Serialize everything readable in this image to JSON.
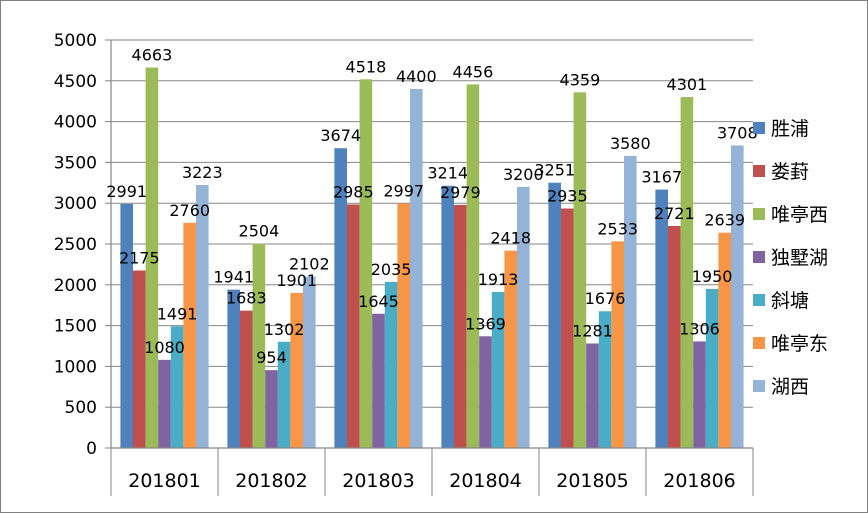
{
  "chart_data": {
    "type": "bar",
    "title": "",
    "xlabel": "",
    "ylabel": "",
    "ylim": [
      0,
      5000
    ],
    "y_ticks": [
      0,
      500,
      1000,
      1500,
      2000,
      2500,
      3000,
      3500,
      4000,
      4500,
      5000
    ],
    "grid": true,
    "legend_position": "right",
    "categories": [
      "201801",
      "201802",
      "201803",
      "201804",
      "201805",
      "201806"
    ],
    "series": [
      {
        "name": "胜浦",
        "color": "#4f81bd",
        "values": [
          2991,
          1941,
          3674,
          3214,
          3251,
          3167
        ]
      },
      {
        "name": "娄葑",
        "color": "#c0504d",
        "values": [
          2175,
          1683,
          2985,
          2979,
          2935,
          2721
        ]
      },
      {
        "name": "唯亭西",
        "color": "#9bbb59",
        "values": [
          4663,
          2504,
          4518,
          4456,
          4359,
          4301
        ]
      },
      {
        "name": "独墅湖",
        "color": "#8064a2",
        "values": [
          1080,
          954,
          1645,
          1369,
          1281,
          1306
        ]
      },
      {
        "name": "斜塘",
        "color": "#4bacc6",
        "values": [
          1491,
          1302,
          2035,
          1913,
          1676,
          1950
        ]
      },
      {
        "name": "唯亭东",
        "color": "#f79646",
        "values": [
          2760,
          1901,
          2997,
          2418,
          2533,
          2639
        ]
      },
      {
        "name": "湖西",
        "color": "#95b3d7",
        "values": [
          3223,
          2102,
          4400,
          3200,
          3580,
          3708
        ]
      }
    ]
  }
}
